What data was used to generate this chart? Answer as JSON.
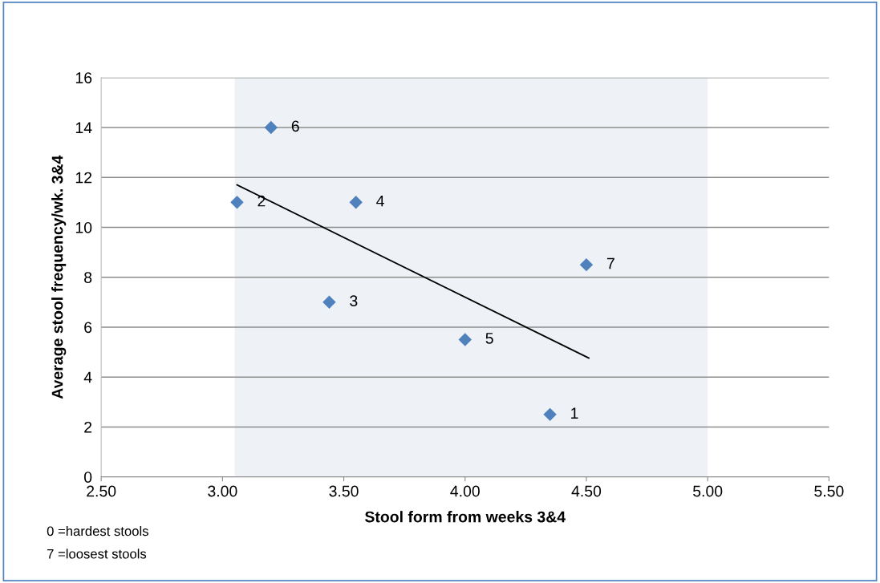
{
  "chart_data": {
    "type": "scatter",
    "xlabel": "Stool form from weeks 3&4",
    "ylabel": "Average stool frequency/wk. 3&4",
    "series": [
      {
        "color": "#4f81bd",
        "marker": "diamond",
        "x": [
          4.35,
          3.06,
          3.44,
          3.55,
          4.0,
          3.2,
          4.5
        ],
        "values": [
          2.5,
          11,
          7,
          11,
          5.5,
          14,
          8.5
        ]
      },
      {
        "type": "line",
        "color": "#000000",
        "marker": "none",
        "line_style": "solid",
        "x": [
          3.06,
          4.51
        ],
        "values": [
          11.7,
          4.76
        ]
      }
    ],
    "xlim": [
      2.5,
      5.5
    ],
    "xticks": [
      {
        "value": 2.5,
        "label": "2.50"
      },
      {
        "value": 3.0,
        "label": "3.00"
      },
      {
        "value": 3.5,
        "label": "3.50"
      },
      {
        "value": 4.0,
        "label": "4.00"
      },
      {
        "value": 4.5,
        "label": "4.50"
      },
      {
        "value": 5.0,
        "label": "5.00"
      },
      {
        "value": 5.5,
        "label": "5.50"
      }
    ],
    "ylim": [
      0,
      16
    ],
    "yticks": [
      0,
      2,
      4,
      6,
      8,
      10,
      12,
      14,
      16
    ],
    "grid": "y",
    "bands": [
      {
        "axis": "x",
        "from": 3.05,
        "to": 5.0,
        "color": "#eef2f7"
      }
    ],
    "annotations": [
      {
        "text": "1",
        "x": 4.35,
        "y": 2.5
      },
      {
        "text": "2",
        "x": 3.06,
        "y": 11
      },
      {
        "text": "3",
        "x": 3.44,
        "y": 7
      },
      {
        "text": "4",
        "x": 3.55,
        "y": 11
      },
      {
        "text": "5",
        "x": 4.0,
        "y": 5.5
      },
      {
        "text": "6",
        "x": 3.2,
        "y": 14
      },
      {
        "text": "7",
        "x": 4.5,
        "y": 8.5
      },
      "0 =hardest stools",
      "7 =loosest stools"
    ]
  }
}
